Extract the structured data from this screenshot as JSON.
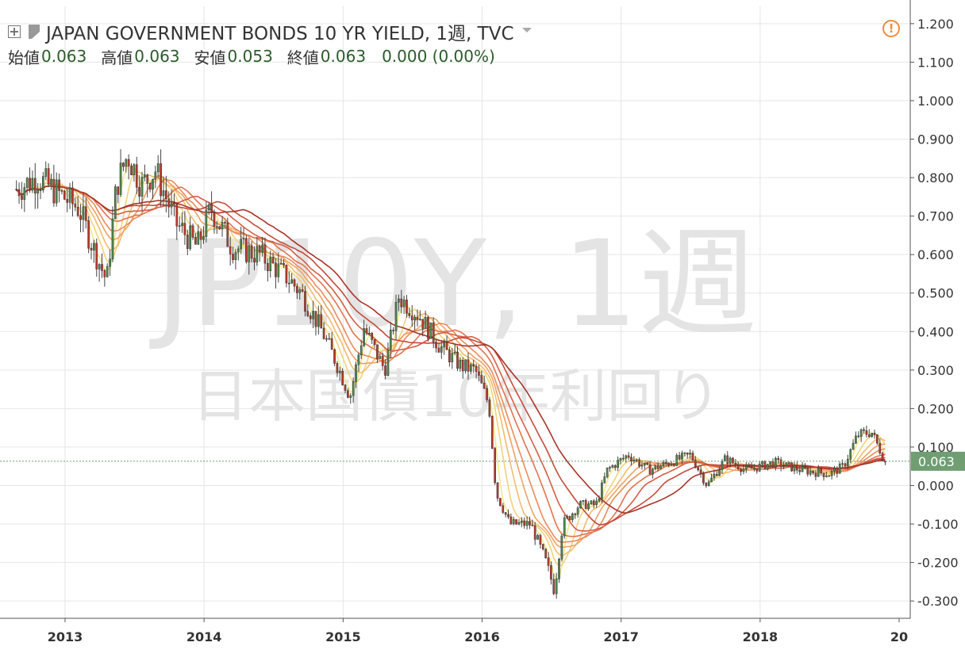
{
  "header": {
    "title": "JAPAN GOVERNMENT BONDS 10 YR YIELD, 1週, TVC",
    "open_label": "始値",
    "open_value": "0.063",
    "high_label": "高値",
    "high_value": "0.063",
    "low_label": "安値",
    "low_value": "0.053",
    "close_label": "終値",
    "close_value": "0.063",
    "change_value": "0.000 (0.00%)",
    "warning_glyph": "!"
  },
  "watermark": {
    "line1": "JP10Y, 1週",
    "line2": "日本国債10年利回り"
  },
  "price_badge": "0.063",
  "colors": {
    "up": "#4e8a4e",
    "down": "#c0392b",
    "grid": "#e6e6e6",
    "ribbon": [
      "#f5e88a",
      "#f4d27a",
      "#f3bb6e",
      "#f0a163",
      "#ea8a5a",
      "#e07350",
      "#d45e45",
      "#c44a3a",
      "#a93328"
    ],
    "badge": "#6f9e72",
    "warning": "#f08c3a"
  },
  "chart_data": {
    "type": "line",
    "title": "JAPAN GOVERNMENT BONDS 10 YR YIELD",
    "interval": "weekly candlestick",
    "y_ticks": [
      "1.200",
      "1.100",
      "1.000",
      "0.900",
      "0.800",
      "0.700",
      "0.600",
      "0.500",
      "0.400",
      "0.300",
      "0.200",
      "0.100",
      "0.000",
      "-0.100",
      "-0.200",
      "-0.300"
    ],
    "ylim": [
      -0.345,
      1.245
    ],
    "x_ticks": [
      "2013",
      "2014",
      "2015",
      "2016",
      "2017",
      "2018",
      "20"
    ],
    "x": [
      "2012.65",
      "2012.80",
      "2012.95",
      "2013.10",
      "2013.20",
      "2013.30",
      "2013.37",
      "2013.45",
      "2013.55",
      "2013.65",
      "2013.80",
      "2013.95",
      "2014.05",
      "2014.20",
      "2014.40",
      "2014.60",
      "2014.70",
      "2014.85",
      "2014.95",
      "2015.05",
      "2015.15",
      "2015.30",
      "2015.40",
      "2015.55",
      "2015.70",
      "2015.85",
      "2015.95",
      "2016.05",
      "2016.10",
      "2016.20",
      "2016.35",
      "2016.45",
      "2016.52",
      "2016.58",
      "2016.70",
      "2016.82",
      "2016.90",
      "2017.05",
      "2017.20",
      "2017.35",
      "2017.50",
      "2017.62",
      "2017.75",
      "2017.90",
      "2018.10",
      "2018.30",
      "2018.50",
      "2018.60",
      "2018.70",
      "2018.80",
      "2018.90"
    ],
    "series": [
      {
        "values": [
          0.77,
          0.8,
          0.76,
          0.72,
          0.62,
          0.53,
          0.78,
          0.86,
          0.78,
          0.82,
          0.68,
          0.62,
          0.72,
          0.62,
          0.6,
          0.54,
          0.5,
          0.4,
          0.32,
          0.23,
          0.41,
          0.3,
          0.49,
          0.44,
          0.36,
          0.31,
          0.3,
          0.21,
          -0.02,
          -0.1,
          -0.1,
          -0.19,
          -0.27,
          -0.1,
          -0.05,
          -0.05,
          0.04,
          0.08,
          0.04,
          0.06,
          0.08,
          0.0,
          0.07,
          0.04,
          0.06,
          0.04,
          0.03,
          0.05,
          0.13,
          0.14,
          0.063
        ]
      }
    ],
    "current_value": 0.063
  }
}
